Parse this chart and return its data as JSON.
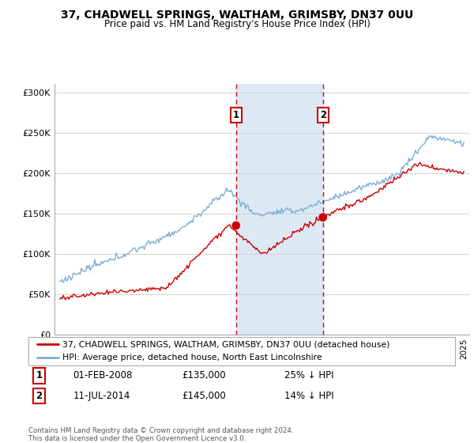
{
  "title": "37, CHADWELL SPRINGS, WALTHAM, GRIMSBY, DN37 0UU",
  "subtitle": "Price paid vs. HM Land Registry's House Price Index (HPI)",
  "legend_line1": "37, CHADWELL SPRINGS, WALTHAM, GRIMSBY, DN37 0UU (detached house)",
  "legend_line2": "HPI: Average price, detached house, North East Lincolnshire",
  "transaction1_date": "01-FEB-2008",
  "transaction1_price": "£135,000",
  "transaction1_hpi": "25% ↓ HPI",
  "transaction2_date": "11-JUL-2014",
  "transaction2_price": "£145,000",
  "transaction2_hpi": "14% ↓ HPI",
  "footnote": "Contains HM Land Registry data © Crown copyright and database right 2024.\nThis data is licensed under the Open Government Licence v3.0.",
  "hpi_color": "#7bafd4",
  "price_color": "#cc0000",
  "highlight_color": "#dce9f5",
  "transaction1_x": 2008.08,
  "transaction2_x": 2014.53,
  "ylim": [
    0,
    310000
  ],
  "xlim_start": 1994.6,
  "xlim_end": 2025.4
}
